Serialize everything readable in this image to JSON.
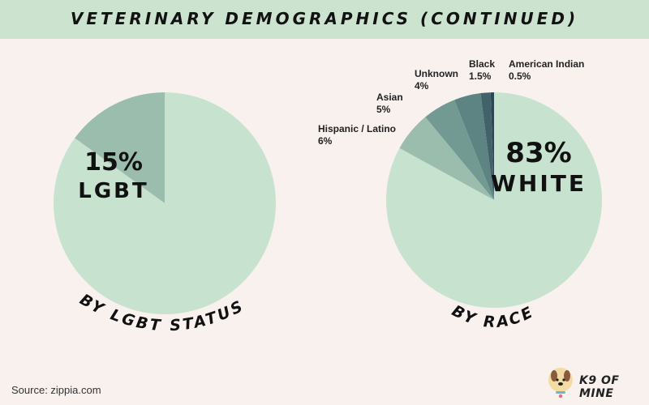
{
  "header": {
    "title": "VETERINARY DEMOGRAPHICS (CONTINUED)"
  },
  "chart_data": [
    {
      "type": "pie",
      "slices": [
        {
          "label": "LGBT",
          "value": 15,
          "color": "#9bbdad"
        },
        {
          "label": "",
          "value": 85,
          "color": "#c7e3cf"
        }
      ],
      "center_label": {
        "value": "15%",
        "text": "LGBT"
      },
      "caption": "BY LGBT STATUS"
    },
    {
      "type": "pie",
      "slices": [
        {
          "label": "White",
          "value": 83,
          "color": "#c7e3cf"
        },
        {
          "label": "Hispanic / Latino",
          "value": 6,
          "display": "6%",
          "color": "#9bbdad"
        },
        {
          "label": "Asian",
          "value": 5,
          "display": "5%",
          "color": "#739a92"
        },
        {
          "label": "Unknown",
          "value": 4,
          "display": "4%",
          "color": "#5d8383"
        },
        {
          "label": "Black",
          "value": 1.5,
          "display": "1.5%",
          "color": "#406268"
        },
        {
          "label": "American Indian",
          "value": 0.5,
          "display": "0.5%",
          "color": "#2e4654"
        }
      ],
      "center_label": {
        "value": "83%",
        "text": "WHITE"
      },
      "caption": "BY RACE"
    }
  ],
  "footer": {
    "source": "Source: zippia.com",
    "logo_text": "K9 OF MINE"
  }
}
